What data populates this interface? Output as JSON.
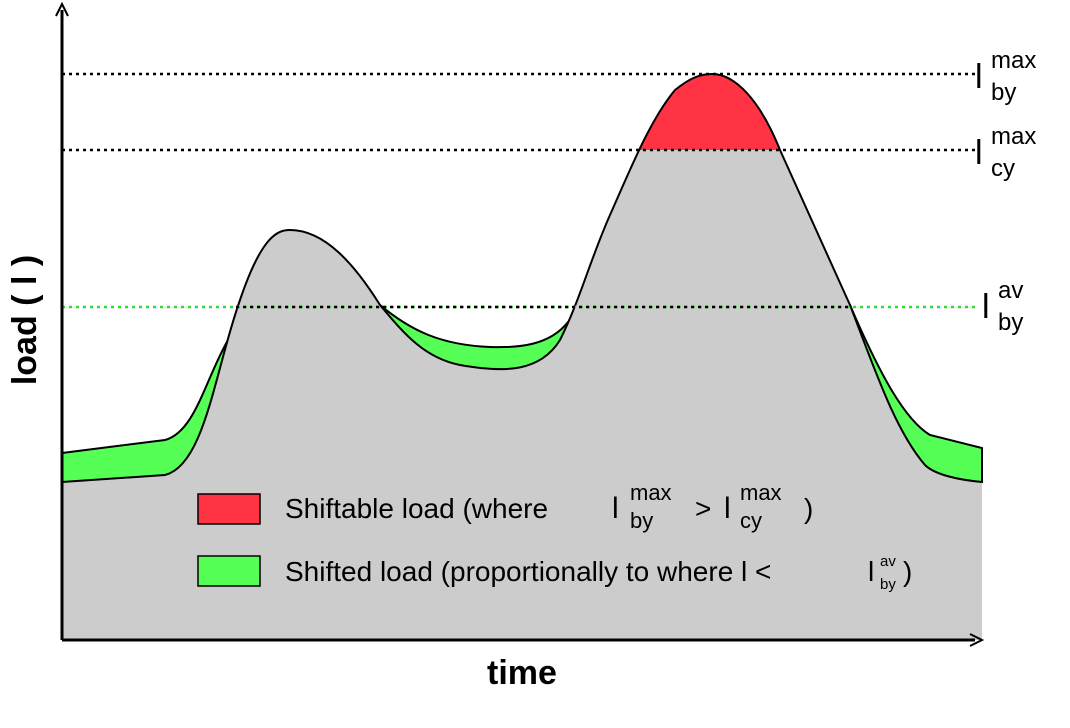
{
  "axes": {
    "x_label": "time",
    "y_label": "load ( l )"
  },
  "levels": {
    "by_max": {
      "base": "l",
      "sup": "max",
      "sub": "by"
    },
    "cy_max": {
      "base": "l",
      "sup": "max",
      "sub": "cy"
    },
    "by_av": {
      "base": "l",
      "sup": "av",
      "sub": "by",
      "color": "#33dd33"
    }
  },
  "legend": {
    "shiftable": {
      "text": "Shiftable load (where",
      "term1": {
        "base": "l",
        "sup": "max",
        "sub": "by"
      },
      "op": ">",
      "term2": {
        "base": "l",
        "sup": "max",
        "sub": "cy"
      },
      "close": ")",
      "color": "#ff3344"
    },
    "shifted": {
      "text": "Shifted load (proportionally to where l <",
      "term": {
        "base": "l",
        "sup": "av",
        "sub": "by"
      },
      "close": ")",
      "color": "#55ff55"
    }
  },
  "colors": {
    "base_load": "#cccccc",
    "shiftable": "#ff3344",
    "shifted": "#55ff55",
    "axis": "#000000"
  }
}
